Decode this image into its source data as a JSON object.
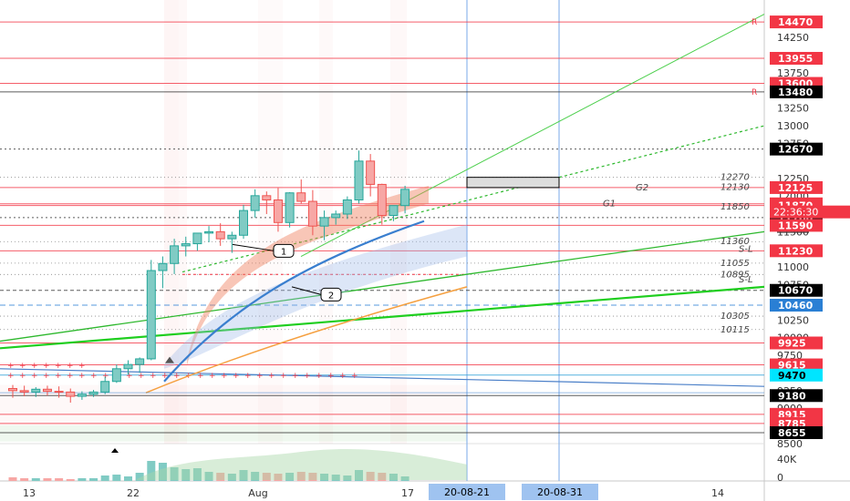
{
  "chart_data": {
    "type": "candlestick",
    "y_range": [
      8500,
      14600
    ],
    "price_axis_ticks": [
      14250,
      13750,
      13250,
      13000,
      12750,
      12250,
      12000,
      11000,
      10750,
      10250,
      9750,
      9250,
      9000,
      8500
    ],
    "price_axis_ticks_struck": [
      11500,
      10000
    ],
    "volume_axis_ticks": [
      "40K",
      "0"
    ],
    "x_labels": [
      "13",
      "22",
      "Aug",
      "17",
      "14"
    ],
    "time_labels": [
      {
        "text": "20-08-21",
        "highlight": true
      },
      {
        "text": "20-08-31",
        "highlight": true
      }
    ],
    "price_labels": [
      {
        "value": 14470,
        "text": "14470",
        "color": "#f23645",
        "marker": "R"
      },
      {
        "value": 13955,
        "text": "13955",
        "color": "#f23645"
      },
      {
        "value": 13600,
        "text": "13600",
        "color": "#f23645"
      },
      {
        "value": 13480,
        "text": "13480",
        "color": "#000000",
        "marker": "R"
      },
      {
        "value": 12670,
        "text": "12670",
        "color": "#000000"
      },
      {
        "value": 12125,
        "text": "12125",
        "color": "#f23645"
      },
      {
        "value": 11895,
        "text": "11895",
        "color": "#f23645"
      },
      {
        "value": 11870,
        "text": "11870",
        "color": "#f23645"
      },
      {
        "value": 11700,
        "text": "11700",
        "color": "#000000"
      },
      {
        "value": 11590,
        "text": "11590",
        "color": "#f23645"
      },
      {
        "value": 11230,
        "text": "11230",
        "color": "#f23645"
      },
      {
        "value": 10670,
        "text": "10670",
        "color": "#000000"
      },
      {
        "value": 10460,
        "text": "10460",
        "color": "#2a7fd4"
      },
      {
        "value": 9925,
        "text": "9925",
        "color": "#f23645"
      },
      {
        "value": 9615,
        "text": "9615",
        "color": "#f23645"
      },
      {
        "value": 9470,
        "text": "9470",
        "color": "#00e5ff",
        "text_color": "#000000"
      },
      {
        "value": 9180,
        "text": "9180",
        "color": "#000000"
      },
      {
        "value": 8915,
        "text": "8915",
        "color": "#f23645"
      },
      {
        "value": 8785,
        "text": "8785",
        "color": "#f23645"
      },
      {
        "value": 8655,
        "text": "8655",
        "color": "#000000"
      }
    ],
    "countdown_label": "22:36:30",
    "annotations": [
      {
        "text": "12270",
        "value": 12270
      },
      {
        "text": "12130",
        "value": 12130
      },
      {
        "text": "G2",
        "value": 12125
      },
      {
        "text": "G1",
        "value": 11895
      },
      {
        "text": "11850",
        "value": 11850
      },
      {
        "text": "11360",
        "value": 11360
      },
      {
        "text": "S-L",
        "value": 11255
      },
      {
        "text": "11055",
        "value": 11055
      },
      {
        "text": "10895",
        "value": 10895
      },
      {
        "text": "S-L",
        "value": 10820
      },
      {
        "text": "10305",
        "value": 10305
      },
      {
        "text": "10115",
        "value": 10115
      }
    ],
    "callouts": [
      "1",
      "2"
    ],
    "candles": [
      {
        "o": 9280,
        "h": 9330,
        "l": 9150,
        "c": 9250
      },
      {
        "o": 9250,
        "h": 9320,
        "l": 9170,
        "c": 9230
      },
      {
        "o": 9230,
        "h": 9300,
        "l": 9160,
        "c": 9270
      },
      {
        "o": 9270,
        "h": 9320,
        "l": 9180,
        "c": 9240
      },
      {
        "o": 9240,
        "h": 9310,
        "l": 9150,
        "c": 9230
      },
      {
        "o": 9230,
        "h": 9280,
        "l": 9080,
        "c": 9170
      },
      {
        "o": 9170,
        "h": 9240,
        "l": 9120,
        "c": 9200
      },
      {
        "o": 9200,
        "h": 9260,
        "l": 9160,
        "c": 9230
      },
      {
        "o": 9230,
        "h": 9450,
        "l": 9200,
        "c": 9380
      },
      {
        "o": 9380,
        "h": 9620,
        "l": 9360,
        "c": 9560
      },
      {
        "o": 9560,
        "h": 9680,
        "l": 9480,
        "c": 9620
      },
      {
        "o": 9620,
        "h": 9720,
        "l": 9500,
        "c": 9700
      },
      {
        "o": 9700,
        "h": 11100,
        "l": 9680,
        "c": 10950
      },
      {
        "o": 10950,
        "h": 11150,
        "l": 10700,
        "c": 11050
      },
      {
        "o": 11050,
        "h": 11400,
        "l": 10900,
        "c": 11300
      },
      {
        "o": 11300,
        "h": 11430,
        "l": 11150,
        "c": 11330
      },
      {
        "o": 11330,
        "h": 11470,
        "l": 11230,
        "c": 11480
      },
      {
        "o": 11480,
        "h": 11580,
        "l": 11350,
        "c": 11500
      },
      {
        "o": 11500,
        "h": 11620,
        "l": 11300,
        "c": 11400
      },
      {
        "o": 11400,
        "h": 11500,
        "l": 11200,
        "c": 11450
      },
      {
        "o": 11450,
        "h": 11880,
        "l": 11400,
        "c": 11800
      },
      {
        "o": 11800,
        "h": 12100,
        "l": 11700,
        "c": 12010
      },
      {
        "o": 12010,
        "h": 12070,
        "l": 11750,
        "c": 11950
      },
      {
        "o": 11950,
        "h": 12120,
        "l": 11500,
        "c": 11630
      },
      {
        "o": 11630,
        "h": 12060,
        "l": 11560,
        "c": 12050
      },
      {
        "o": 12050,
        "h": 12240,
        "l": 11900,
        "c": 11930
      },
      {
        "o": 11930,
        "h": 12090,
        "l": 11450,
        "c": 11580
      },
      {
        "o": 11580,
        "h": 11800,
        "l": 11380,
        "c": 11700
      },
      {
        "o": 11700,
        "h": 11800,
        "l": 11600,
        "c": 11750
      },
      {
        "o": 11750,
        "h": 12000,
        "l": 11680,
        "c": 11950
      },
      {
        "o": 11950,
        "h": 12650,
        "l": 11900,
        "c": 12500
      },
      {
        "o": 12500,
        "h": 12600,
        "l": 12000,
        "c": 12170
      },
      {
        "o": 12170,
        "h": 12180,
        "l": 11600,
        "c": 11730
      },
      {
        "o": 11730,
        "h": 11870,
        "l": 11650,
        "c": 11870
      },
      {
        "o": 11870,
        "h": 12150,
        "l": 11760,
        "c": 12100
      }
    ],
    "volume": [
      4,
      3,
      3,
      3,
      3,
      2,
      3,
      3,
      6,
      7,
      5,
      9,
      22,
      20,
      15,
      13,
      14,
      10,
      9,
      8,
      12,
      10,
      9,
      8,
      9,
      10,
      9,
      8,
      7,
      6,
      12,
      10,
      9,
      8,
      5
    ]
  }
}
